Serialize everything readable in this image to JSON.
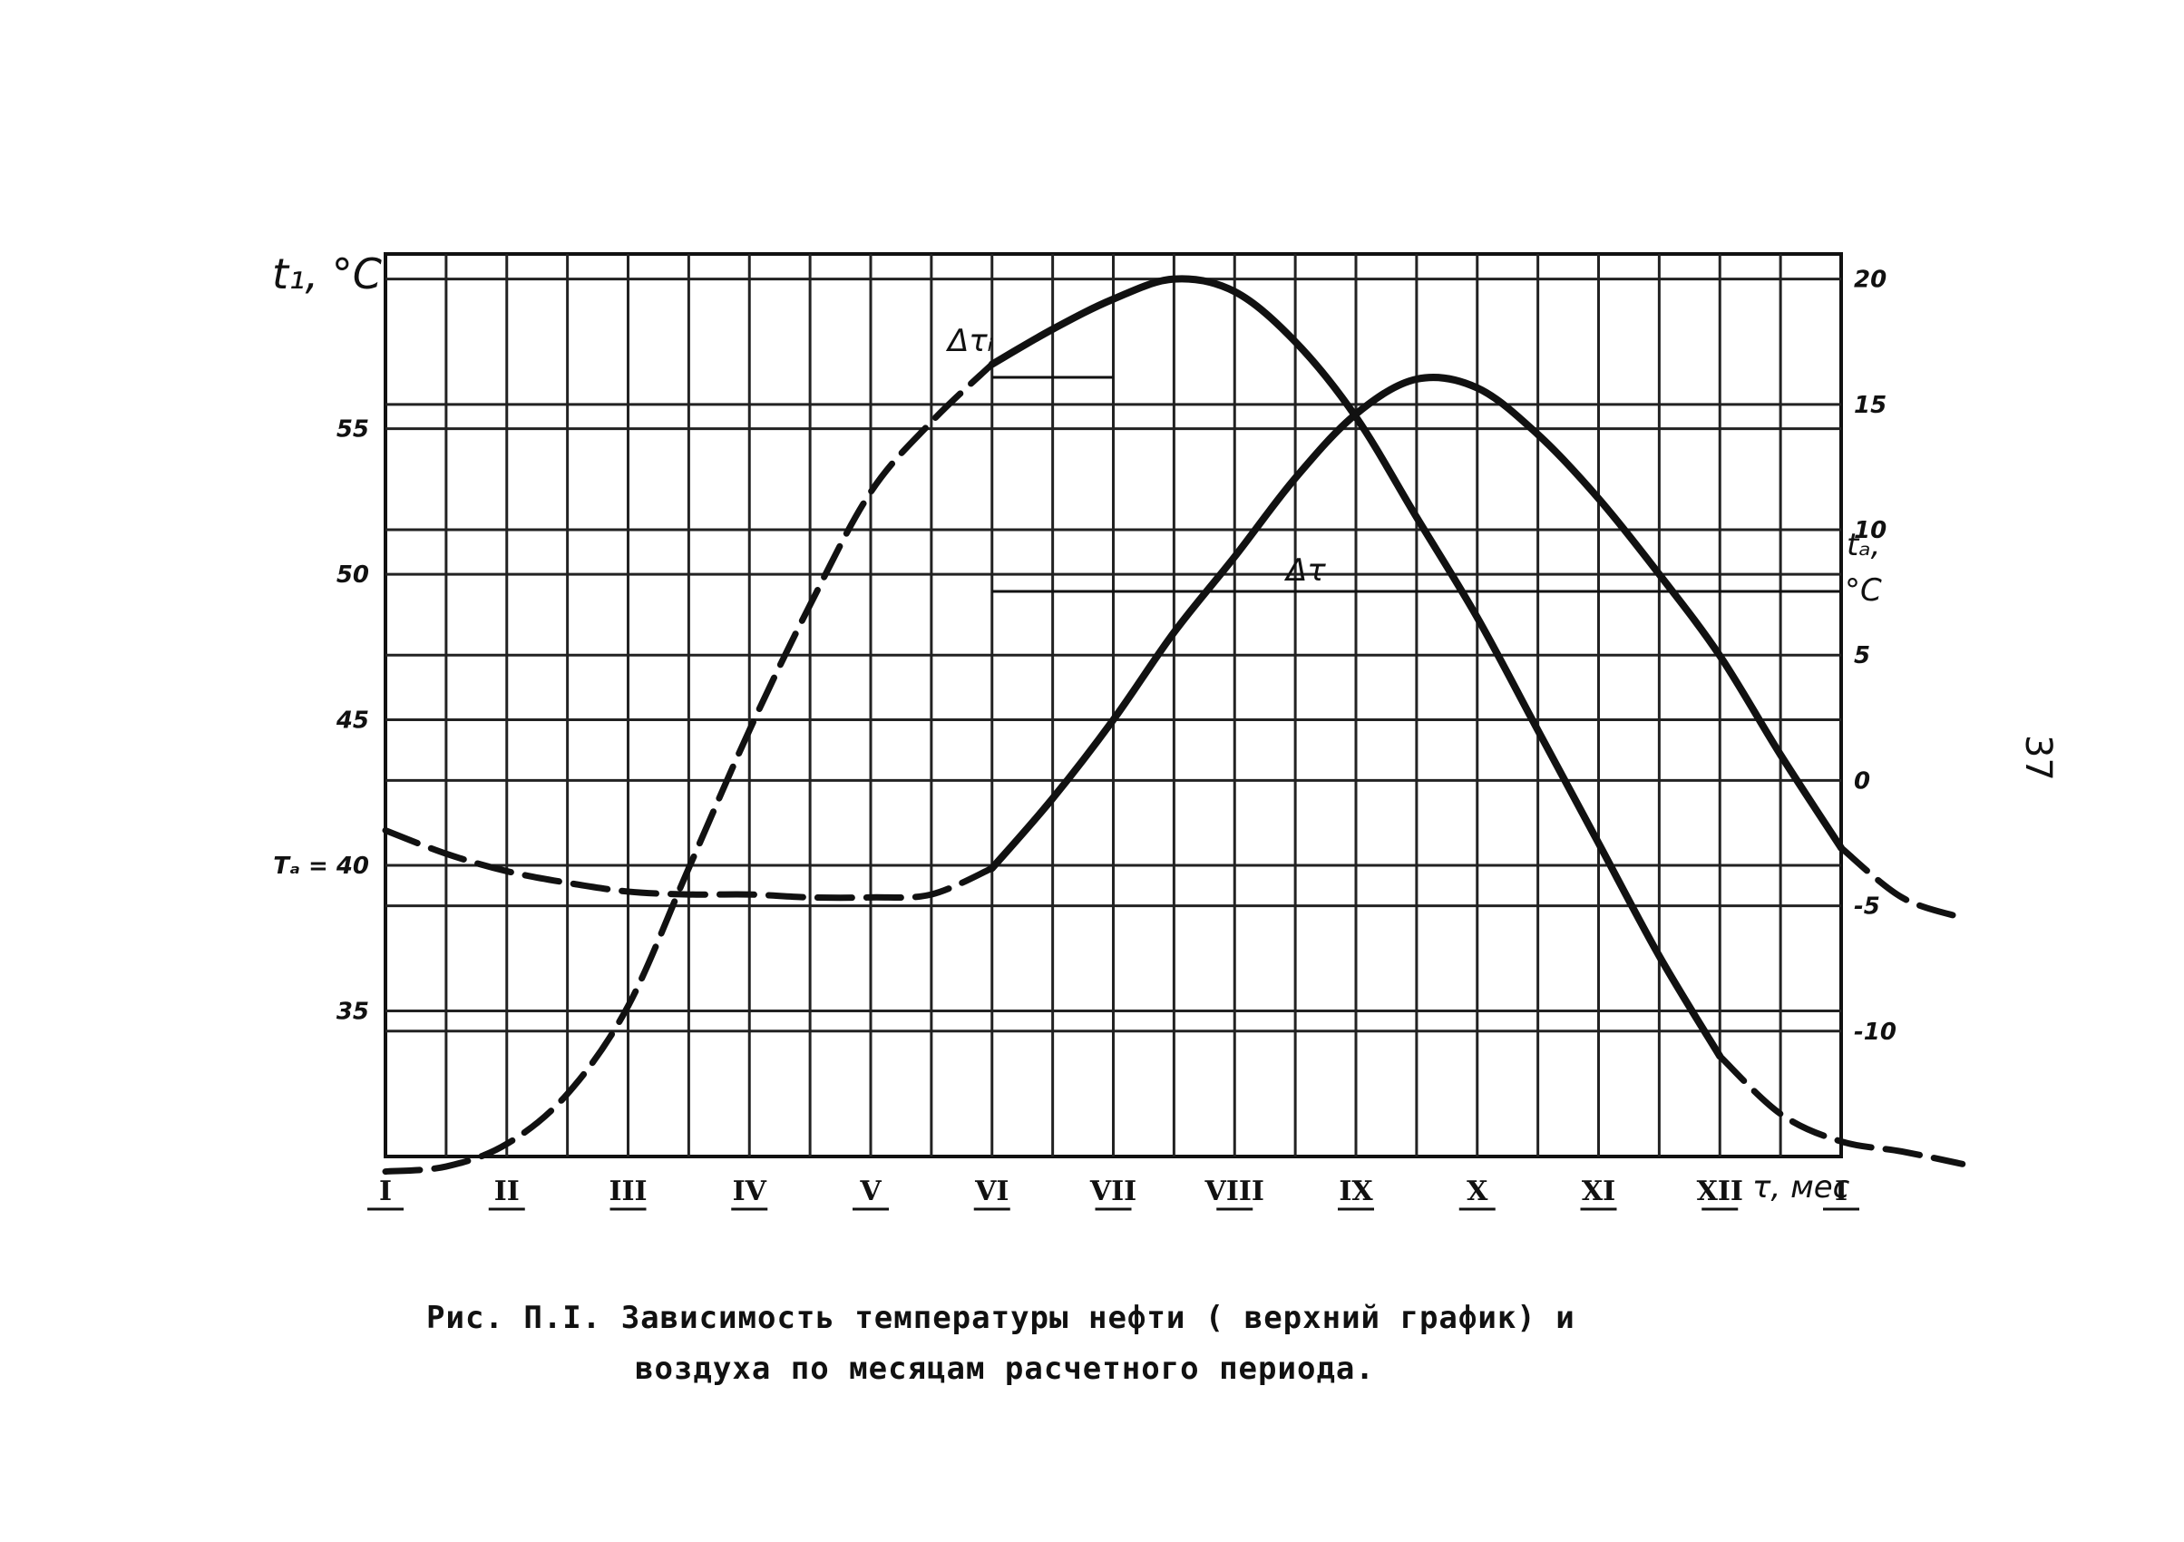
{
  "chart_data": {
    "type": "line",
    "x_categories": [
      "I",
      "II",
      "III",
      "IV",
      "V",
      "VI",
      "VII",
      "VIII",
      "IX",
      "X",
      "XI",
      "XII",
      "I"
    ],
    "xlabel": "τ, мес",
    "left_axis": {
      "label": "t₁, °C",
      "ylim": [
        30,
        61
      ],
      "ticks": [
        {
          "value": 55,
          "label": "55"
        },
        {
          "value": 50,
          "label": "50"
        },
        {
          "value": 45,
          "label": "45"
        },
        {
          "value": 40,
          "label": "Tₐ = 40"
        },
        {
          "value": 35,
          "label": "35"
        }
      ]
    },
    "right_axis": {
      "label_top": "tₐ,",
      "label_bottom": "°C",
      "ylim": [
        -15,
        21
      ],
      "ticks": [
        "20",
        "15",
        "10",
        "5",
        "0",
        "-5",
        "-10"
      ]
    },
    "series": [
      {
        "axis": "left",
        "points": [
          [
            0,
            41.2
          ],
          [
            0.5,
            40.4
          ],
          [
            1,
            39.8
          ],
          [
            1.5,
            39.4
          ],
          [
            2,
            39.1
          ],
          [
            2.5,
            39.0
          ],
          [
            3,
            39.0
          ],
          [
            3.5,
            38.9
          ],
          [
            4,
            38.9
          ],
          [
            4.5,
            39.0
          ],
          [
            5,
            39.9
          ],
          [
            5.5,
            42.3
          ],
          [
            6,
            45.0
          ],
          [
            6.5,
            48.0
          ],
          [
            7,
            50.6
          ],
          [
            7.5,
            53.3
          ],
          [
            8,
            55.5
          ],
          [
            8.5,
            56.7
          ],
          [
            9,
            56.4
          ],
          [
            9.5,
            54.8
          ],
          [
            10,
            52.6
          ],
          [
            10.5,
            50.0
          ],
          [
            11,
            47.2
          ],
          [
            11.5,
            43.8
          ],
          [
            12,
            40.6
          ],
          [
            12.5,
            38.9
          ],
          [
            13,
            38.2
          ]
        ]
      },
      {
        "axis": "right",
        "points": [
          [
            0,
            -15.6
          ],
          [
            0.5,
            -15.4
          ],
          [
            1,
            -14.5
          ],
          [
            1.5,
            -12.5
          ],
          [
            2,
            -9.0
          ],
          [
            2.5,
            -3.5
          ],
          [
            3,
            2.0
          ],
          [
            3.5,
            7.0
          ],
          [
            4,
            11.5
          ],
          [
            4.5,
            14.3
          ],
          [
            5,
            16.6
          ],
          [
            5.5,
            18.0
          ],
          [
            6,
            19.2
          ],
          [
            6.5,
            20.0
          ],
          [
            7,
            19.5
          ],
          [
            7.5,
            17.5
          ],
          [
            8,
            14.5
          ],
          [
            8.5,
            10.5
          ],
          [
            9,
            6.5
          ],
          [
            9.5,
            2.0
          ],
          [
            10,
            -2.5
          ],
          [
            10.5,
            -7.0
          ],
          [
            11,
            -11.0
          ],
          [
            11.5,
            -13.3
          ],
          [
            12,
            -14.4
          ],
          [
            12.5,
            -14.8
          ],
          [
            13,
            -15.3
          ]
        ]
      }
    ],
    "annotations": [
      "Δτᵢ",
      "Δτ"
    ]
  },
  "caption": {
    "line1": "Рис. П.I. Зависимость температуры нефти ( верхний график) и",
    "line2": "воздуха по месяцам расчетного периода."
  },
  "page_number": "37"
}
